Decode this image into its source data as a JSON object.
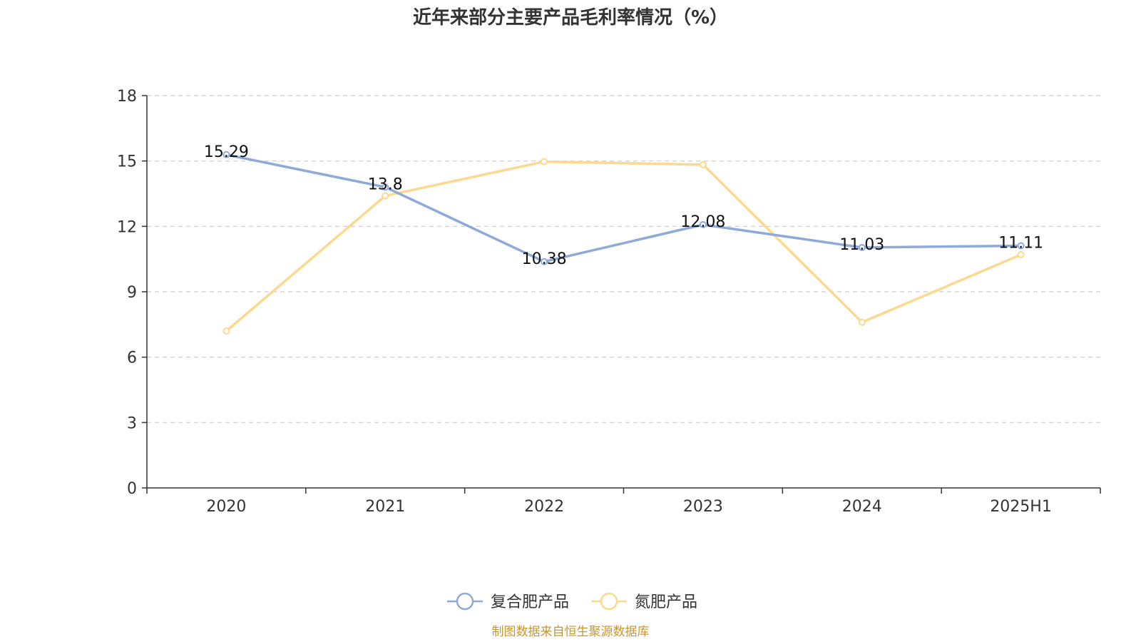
{
  "chart_data": {
    "type": "line",
    "title": "近年来部分主要产品毛利率情况（%）",
    "categories": [
      "2020",
      "2021",
      "2022",
      "2023",
      "2024",
      "2025H1"
    ],
    "ylim": [
      0,
      18
    ],
    "yticks": [
      0,
      3,
      6,
      9,
      12,
      15,
      18
    ],
    "grid": true,
    "legend_position": "bottom-center",
    "series": [
      {
        "name": "复合肥产品",
        "color": "#8eaad8",
        "values": [
          15.29,
          13.8,
          10.38,
          12.08,
          11.03,
          11.11
        ],
        "data_labels": [
          "15.29",
          "13.8",
          "10.38",
          "12.08",
          "11.03",
          "11.11"
        ]
      },
      {
        "name": "氮肥产品",
        "color": "#fbd98e",
        "values": [
          7.2,
          13.4,
          14.97,
          14.83,
          7.6,
          10.7
        ]
      }
    ]
  },
  "source": {
    "text": "制图数据来自恒生聚源数据库",
    "color": "#c8962e"
  }
}
